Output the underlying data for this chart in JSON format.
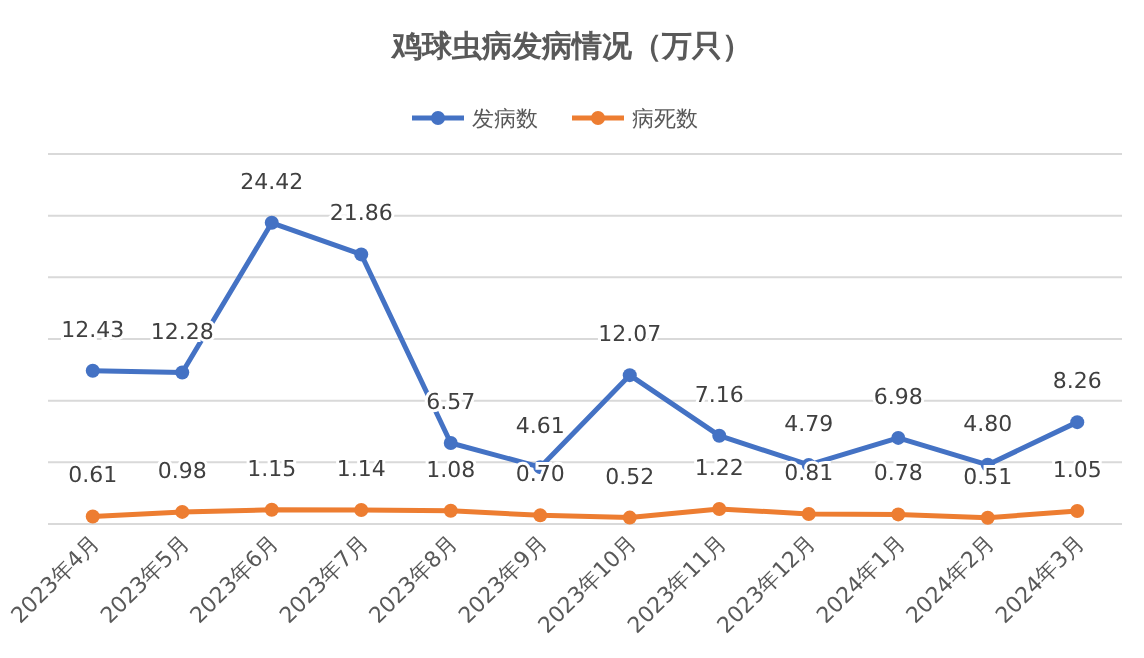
{
  "chart_data": {
    "type": "line",
    "title": "鸡球虫病发病情况（万只）",
    "categories": [
      "2023年4月",
      "2023年5月",
      "2023年6月",
      "2023年7月",
      "2023年8月",
      "2023年9月",
      "2023年10月",
      "2023年11月",
      "2023年12月",
      "2024年1月",
      "2024年2月",
      "2024年3月"
    ],
    "series": [
      {
        "name": "发病数",
        "color": "#4472c4",
        "values": [
          12.43,
          12.28,
          24.42,
          21.86,
          6.57,
          4.61,
          12.07,
          7.16,
          4.79,
          6.98,
          4.8,
          8.26
        ],
        "value_labels": [
          "12.43",
          "12.28",
          "24.42",
          "21.86",
          "6.57",
          "4.61",
          "12.07",
          "7.16",
          "4.79",
          "6.98",
          "4.80",
          "8.26"
        ]
      },
      {
        "name": "病死数",
        "color": "#ed7d31",
        "values": [
          0.61,
          0.98,
          1.15,
          1.14,
          1.08,
          0.7,
          0.52,
          1.22,
          0.81,
          0.78,
          0.51,
          1.05
        ],
        "value_labels": [
          "0.61",
          "0.98",
          "1.15",
          "1.14",
          "1.08",
          "0.70",
          "0.52",
          "1.22",
          "0.81",
          "0.78",
          "0.51",
          "1.05"
        ]
      }
    ],
    "ylim": [
      0,
      30
    ],
    "yticks": [
      {
        "value": 0,
        "label": null
      },
      {
        "value": 5,
        "label": null
      },
      {
        "value": 10,
        "label": null
      },
      {
        "value": 15,
        "label": null
      },
      {
        "value": 20,
        "label": null
      },
      {
        "value": 25,
        "label": null
      },
      {
        "value": 30,
        "label": null
      }
    ],
    "tick_labels": "x",
    "grid": "y",
    "legend": "top",
    "marker": "circle",
    "line_style": "solid"
  }
}
